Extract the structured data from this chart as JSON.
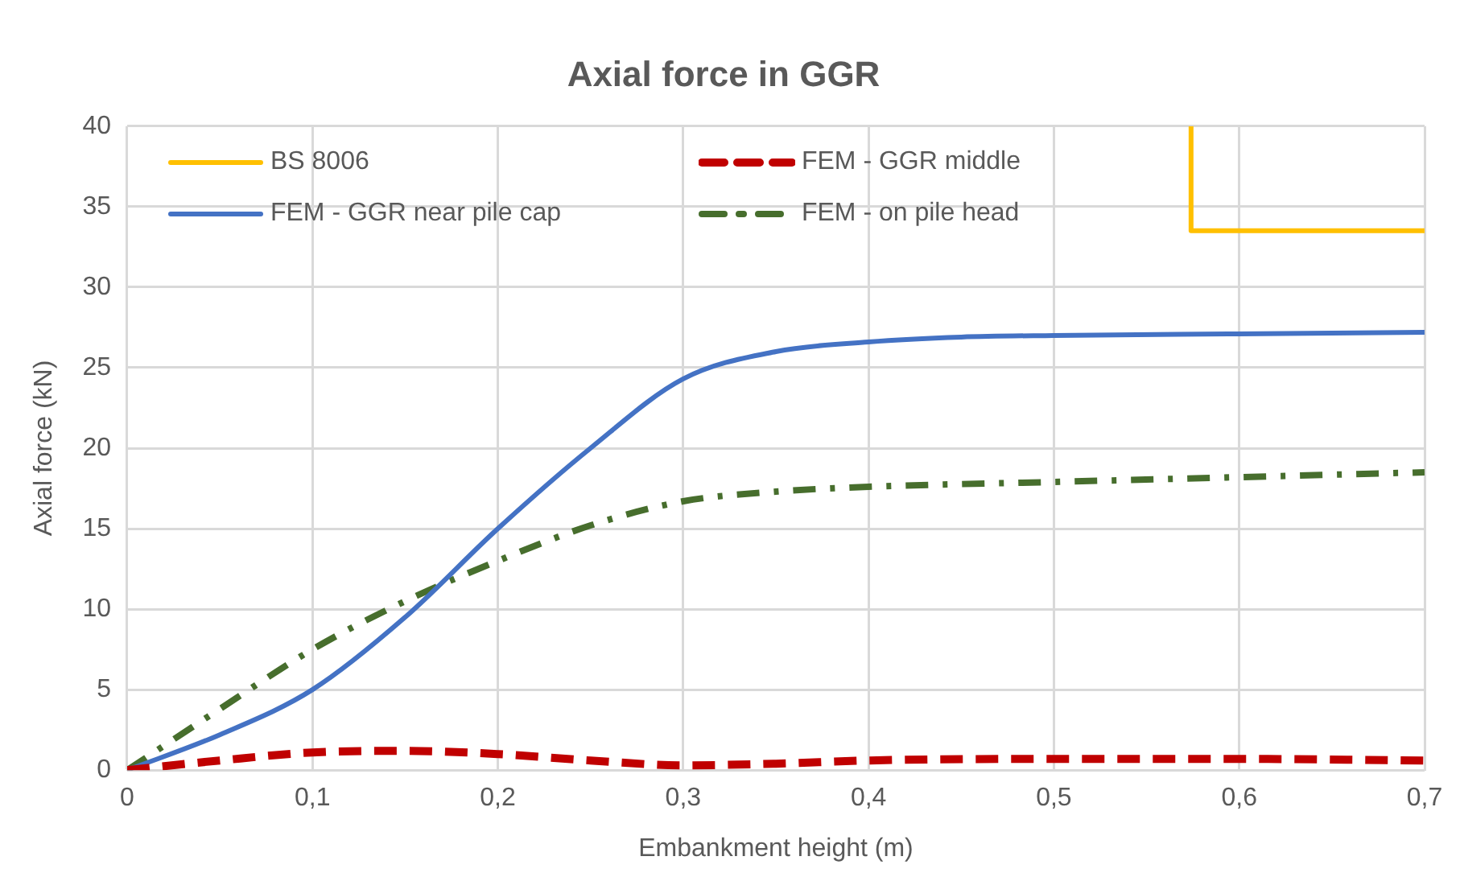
{
  "chart_data": {
    "type": "line",
    "title": "Axial force in GGR",
    "xlabel": "Embankment height (m)",
    "ylabel": "Axial force (kN)",
    "xlim": [
      0,
      0.7
    ],
    "xticks": [
      0,
      {
        "value": 0.1,
        "label": "0,1"
      },
      {
        "value": 0.2,
        "label": "0,2"
      },
      {
        "value": 0.3,
        "label": "0,3"
      },
      {
        "value": 0.4,
        "label": "0,4"
      },
      {
        "value": 0.5,
        "label": "0,5"
      },
      {
        "value": 0.6,
        "label": "0,6"
      },
      {
        "value": 0.7,
        "label": "0,7"
      }
    ],
    "ylim": [
      0,
      40
    ],
    "yticks": [
      0,
      5,
      10,
      15,
      20,
      25,
      30,
      35,
      40
    ],
    "grid": true,
    "legend": "top left",
    "marker": "none",
    "series": [
      {
        "name": "BS 8006",
        "color": "#ffc000",
        "line_style": "solid",
        "x": [
          0.574,
          0.574,
          0.7
        ],
        "values": [
          40,
          33.5,
          33.5
        ]
      },
      {
        "name": "FEM - GGR middle",
        "color": "#c00000",
        "line_style": "dashed",
        "x": [
          0,
          0.05,
          0.1,
          0.15,
          0.2,
          0.25,
          0.3,
          0.35,
          0.4,
          0.5,
          0.6,
          0.7
        ],
        "values": [
          0,
          0.6,
          1.1,
          1.2,
          1,
          0.6,
          0.3,
          0.4,
          0.6,
          0.7,
          0.7,
          0.6
        ]
      },
      {
        "name": "FEM - GGR near pile cap",
        "color": "#4472c4",
        "line_style": "solid",
        "x": [
          0,
          0.05,
          0.1,
          0.15,
          0.2,
          0.25,
          0.3,
          0.35,
          0.4,
          0.45,
          0.5,
          0.6,
          0.7
        ],
        "values": [
          0,
          2.2,
          5,
          9.5,
          15,
          20,
          24.3,
          26,
          26.6,
          26.9,
          27,
          27.1,
          27.2
        ]
      },
      {
        "name": "FEM - on pile head",
        "color": "#476e2d",
        "line_style": "dashdot",
        "x": [
          0,
          0.05,
          0.1,
          0.15,
          0.2,
          0.25,
          0.3,
          0.35,
          0.4,
          0.5,
          0.6,
          0.7
        ],
        "values": [
          0,
          3.8,
          7.5,
          10.5,
          13,
          15.2,
          16.7,
          17.3,
          17.6,
          17.9,
          18.2,
          18.5
        ]
      }
    ]
  }
}
